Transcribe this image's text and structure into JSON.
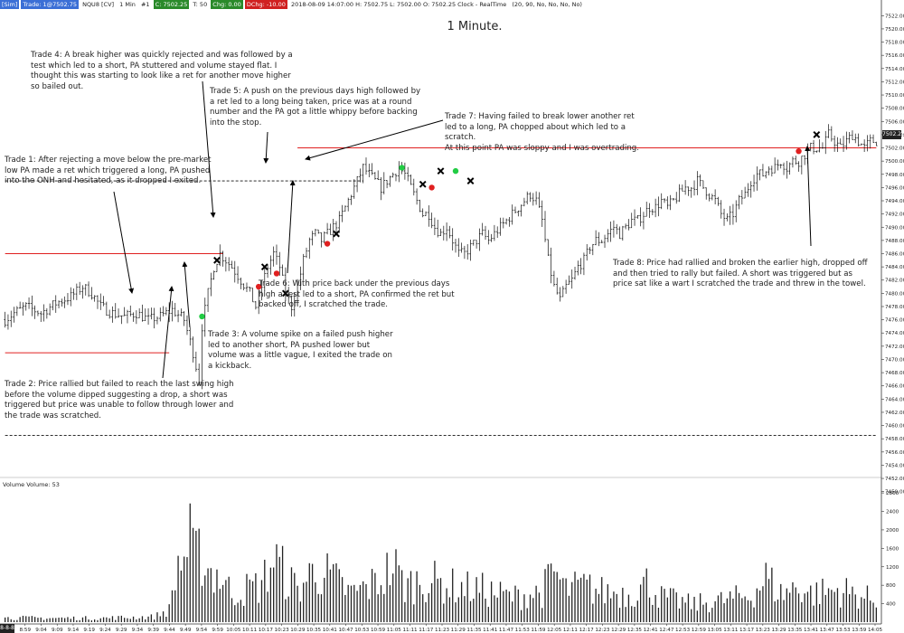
{
  "header": {
    "tag": "[Sim]",
    "trade_label": "Trade: 1@7502.75",
    "symbol": "NQU8 [CV]",
    "interval": "1 Min",
    "bar_no": "#1",
    "close": "C: 7502.25",
    "tick": "T: 50",
    "chg": "Chg: 0.00",
    "dchg": "DChg: -10.00",
    "ohlc": "2018-08-09 14:07:00 H: 7502.75 L: 7502.00 O: 7502.25 Clock - RealTime",
    "params": "(20, 90, No, No, No, No)"
  },
  "title": "1 Minute.",
  "price_box": "7502.25",
  "axis_corner": "8-8-8",
  "volume_label": "Volume  Volume: 53",
  "colors": {
    "red": "#e02020",
    "green": "#22cc44",
    "candle": "#111111",
    "grid": "#cccccc"
  },
  "notes": [
    {
      "id": "trade-4",
      "text": "Trade 4:  A break higher was quickly rejected and was followed by a test which led to a short, PA stuttered and volume stayed flat.  I thought this was starting to look like a ret for another move higher so bailed out."
    },
    {
      "id": "trade-5",
      "text": "Trade 5:  A push on the previous days high followed by a ret led to a long being taken, price was at a round number and the PA got a little whippy before backing into the stop."
    },
    {
      "id": "trade-7",
      "text": "Trade 7:  Having failed to break lower another ret led to a long, PA chopped about which led to a scratch."
    },
    {
      "id": "trade-7b",
      "text": "At this point PA was sloppy and I was overtrading."
    },
    {
      "id": "trade-1",
      "text": "Trade 1:  After rejecting a move below the pre-market low PA made a ret which triggered a long, PA pushed into the ONH and hesitated, as it dropped I exited."
    },
    {
      "id": "trade-6",
      "text": "Trade 6:  With price back under the previous days high a test led to a short, PA confirmed the ret but backed off, I scratched the trade."
    },
    {
      "id": "trade-8",
      "text": "Trade 8:  Price had rallied and broken the earlier high, dropped off and then tried to rally but failed.  A short was triggered but as price sat like a wart I scratched the trade and threw in the towel."
    },
    {
      "id": "trade-3",
      "text": "Trade 3:  A volume spike on a failed push higher led to another short, PA pushed lower but volume was a little vague, I exited the trade on a kickback."
    },
    {
      "id": "trade-2",
      "text": "Trade 2:  Price rallied but failed to reach the last swing high before the volume dipped suggesting a drop, a short was triggered but price was unable to follow through lower and the trade was scratched."
    }
  ],
  "chart_data": {
    "type": "candlestick",
    "price_axis": {
      "ylim": [
        7449,
        7523
      ],
      "tick_labels": [
        "7522.00",
        "7520.00",
        "7518.00",
        "7516.00",
        "7514.00",
        "7512.00",
        "7510.00",
        "7508.00",
        "7506.00",
        "7504.00",
        "7502.00",
        "7500.00",
        "7498.00",
        "7496.00",
        "7494.00",
        "7492.00",
        "7490.00",
        "7488.00",
        "7486.00",
        "7484.00",
        "7482.00",
        "7480.00",
        "7478.00",
        "7476.00",
        "7474.00",
        "7472.00",
        "7470.00",
        "7468.00",
        "7466.00",
        "7464.00",
        "7462.00",
        "7460.00",
        "7458.00",
        "7456.00",
        "7454.00",
        "7452.00",
        "7450.00"
      ]
    },
    "volume_axis": {
      "ylim": [
        0,
        2900
      ],
      "tick_labels": [
        "2800",
        "2400",
        "2000",
        "1600",
        "1200",
        "800",
        "400"
      ]
    },
    "time_labels": [
      "8:53",
      "8:59",
      "9:04",
      "9:09",
      "9:14",
      "9:19",
      "9:24",
      "9:29",
      "9:34",
      "9:39",
      "9:44",
      "9:49",
      "9:54",
      "9:59",
      "10:05",
      "10:11",
      "10:17",
      "10:23",
      "10:29",
      "10:35",
      "10:41",
      "10:47",
      "10:53",
      "10:59",
      "11:05",
      "11:11",
      "11:17",
      "11:23",
      "11:29",
      "11:35",
      "11:41",
      "11:47",
      "11:53",
      "11:59",
      "12:05",
      "12:11",
      "12:17",
      "12:23",
      "12:29",
      "12:35",
      "12:41",
      "12:47",
      "12:53",
      "12:59",
      "13:05",
      "13:11",
      "13:17",
      "13:23",
      "13:29",
      "13:35",
      "13:41",
      "13:47",
      "13:53",
      "13:59",
      "14:05"
    ],
    "price_path": [
      [
        0,
        7476
      ],
      [
        3,
        7477
      ],
      [
        7,
        7478
      ],
      [
        12,
        7477
      ],
      [
        17,
        7478.5
      ],
      [
        22,
        7479.5
      ],
      [
        26,
        7481
      ],
      [
        29,
        7480
      ],
      [
        32,
        7478
      ],
      [
        36,
        7477
      ],
      [
        40,
        7476.5
      ],
      [
        44,
        7477
      ],
      [
        48,
        7476
      ],
      [
        52,
        7476.5
      ],
      [
        56,
        7477.5
      ],
      [
        60,
        7476
      ],
      [
        63,
        7471
      ],
      [
        65,
        7467
      ],
      [
        66,
        7475
      ],
      [
        68,
        7480
      ],
      [
        70,
        7484
      ],
      [
        72,
        7486
      ],
      [
        74,
        7485
      ],
      [
        76,
        7484
      ],
      [
        79,
        7482
      ],
      [
        82,
        7480
      ],
      [
        84,
        7478
      ],
      [
        86,
        7481
      ],
      [
        88,
        7484
      ],
      [
        90,
        7486
      ],
      [
        92,
        7484
      ],
      [
        94,
        7480
      ],
      [
        96,
        7478
      ],
      [
        98,
        7481
      ],
      [
        100,
        7485
      ],
      [
        102,
        7488
      ],
      [
        104,
        7489
      ],
      [
        106,
        7488
      ],
      [
        108,
        7489
      ],
      [
        110,
        7490
      ],
      [
        112,
        7491
      ],
      [
        114,
        7493
      ],
      [
        116,
        7495
      ],
      [
        118,
        7497
      ],
      [
        120,
        7499
      ],
      [
        122,
        7498
      ],
      [
        124,
        7497
      ],
      [
        126,
        7496
      ],
      [
        128,
        7497
      ],
      [
        130,
        7498
      ],
      [
        132,
        7499
      ],
      [
        134,
        7498
      ],
      [
        136,
        7496
      ],
      [
        138,
        7494
      ],
      [
        140,
        7492
      ],
      [
        142,
        7492
      ],
      [
        144,
        7490
      ],
      [
        146,
        7489
      ],
      [
        148,
        7490
      ],
      [
        150,
        7488
      ],
      [
        152,
        7486
      ],
      [
        154,
        7486
      ],
      [
        156,
        7487
      ],
      [
        158,
        7488
      ],
      [
        160,
        7489
      ],
      [
        162,
        7488
      ],
      [
        164,
        7489
      ],
      [
        166,
        7490
      ],
      [
        168,
        7491
      ],
      [
        170,
        7492
      ],
      [
        172,
        7493
      ],
      [
        174,
        7494
      ],
      [
        176,
        7495
      ],
      [
        178,
        7494
      ],
      [
        180,
        7491
      ],
      [
        182,
        7485
      ],
      [
        184,
        7481
      ],
      [
        186,
        7479
      ],
      [
        188,
        7481
      ],
      [
        190,
        7482
      ],
      [
        192,
        7484
      ],
      [
        194,
        7485
      ],
      [
        196,
        7487
      ],
      [
        198,
        7488
      ],
      [
        200,
        7488
      ],
      [
        202,
        7489
      ],
      [
        204,
        7490
      ],
      [
        206,
        7489
      ],
      [
        208,
        7490
      ],
      [
        210,
        7491
      ],
      [
        212,
        7491
      ],
      [
        214,
        7492
      ],
      [
        216,
        7493
      ],
      [
        218,
        7493
      ],
      [
        220,
        7494
      ],
      [
        222,
        7493
      ],
      [
        224,
        7494
      ],
      [
        226,
        7495
      ],
      [
        228,
        7496
      ],
      [
        230,
        7496
      ],
      [
        232,
        7497
      ],
      [
        234,
        7496
      ],
      [
        236,
        7495
      ],
      [
        238,
        7494
      ],
      [
        240,
        7492
      ],
      [
        242,
        7491
      ],
      [
        244,
        7492
      ],
      [
        246,
        7494
      ],
      [
        248,
        7495
      ],
      [
        250,
        7497
      ],
      [
        252,
        7498
      ],
      [
        254,
        7498
      ],
      [
        256,
        7499
      ],
      [
        258,
        7499
      ],
      [
        260,
        7500
      ],
      [
        262,
        7499
      ],
      [
        264,
        7500
      ],
      [
        266,
        7500
      ],
      [
        268,
        7501
      ],
      [
        270,
        7502
      ],
      [
        272,
        7502
      ],
      [
        274,
        7502
      ],
      [
        276,
        7504
      ],
      [
        278,
        7503
      ],
      [
        280,
        7502
      ],
      [
        282,
        7503
      ],
      [
        284,
        7504
      ],
      [
        286,
        7503
      ],
      [
        288,
        7502
      ],
      [
        290,
        7503
      ],
      [
        292,
        7503
      ]
    ],
    "levels": [
      {
        "name": "ONH",
        "y": 7486,
        "x0": 0,
        "x1": 73,
        "style": "solid-red"
      },
      {
        "name": "PML",
        "y": 7471,
        "x0": 0,
        "x1": 55,
        "style": "solid-red"
      },
      {
        "name": "PDH",
        "y": 7502,
        "x0": 98,
        "x1": 292,
        "style": "solid-red"
      },
      {
        "name": "upper-dashed",
        "y": 7497,
        "x0": 0,
        "x1": 120,
        "style": "dashed"
      },
      {
        "name": "lower-dashed",
        "y": 7458.5,
        "x0": 0,
        "x1": 292,
        "style": "dashed"
      }
    ],
    "entries": [
      {
        "trade": 1,
        "side": "long",
        "x": 66,
        "y": 7476.5,
        "marker": "green-dot"
      },
      {
        "trade": 1,
        "side": "exit",
        "x": 71,
        "y": 7485,
        "marker": "x"
      },
      {
        "trade": 2,
        "side": "short",
        "x": 85,
        "y": 7481,
        "marker": "red-dot"
      },
      {
        "trade": 2,
        "side": "exit",
        "x": 87,
        "y": 7484,
        "marker": "x"
      },
      {
        "trade": 3,
        "side": "short",
        "x": 91,
        "y": 7483,
        "marker": "red-dot"
      },
      {
        "trade": 3,
        "side": "exit",
        "x": 94,
        "y": 7480,
        "marker": "x"
      },
      {
        "trade": 4,
        "side": "short",
        "x": 108,
        "y": 7487.5,
        "marker": "red-dot"
      },
      {
        "trade": 4,
        "side": "exit",
        "x": 111,
        "y": 7489,
        "marker": "x"
      },
      {
        "trade": 5,
        "side": "long",
        "x": 133,
        "y": 7499,
        "marker": "green-dot"
      },
      {
        "trade": 5,
        "side": "exit",
        "x": 140,
        "y": 7496.5,
        "marker": "x"
      },
      {
        "trade": 6,
        "side": "short",
        "x": 143,
        "y": 7496,
        "marker": "red-dot"
      },
      {
        "trade": 6,
        "side": "exit",
        "x": 146,
        "y": 7498.5,
        "marker": "x"
      },
      {
        "trade": 7,
        "side": "long",
        "x": 151,
        "y": 7498.5,
        "marker": "green-dot"
      },
      {
        "trade": 7,
        "side": "exit",
        "x": 156,
        "y": 7497,
        "marker": "x"
      },
      {
        "trade": 8,
        "side": "short",
        "x": 266,
        "y": 7501.5,
        "marker": "red-dot"
      },
      {
        "trade": 8,
        "side": "exit",
        "x": 272,
        "y": 7504,
        "marker": "x"
      }
    ],
    "volume_profile": [
      [
        0,
        120
      ],
      [
        30,
        110
      ],
      [
        50,
        150
      ],
      [
        55,
        350
      ],
      [
        58,
        1650
      ],
      [
        60,
        1800
      ],
      [
        62,
        2200
      ],
      [
        64,
        1700
      ],
      [
        66,
        2000
      ],
      [
        68,
        1500
      ],
      [
        72,
        1300
      ],
      [
        76,
        800
      ],
      [
        80,
        900
      ],
      [
        86,
        1050
      ],
      [
        90,
        1800
      ],
      [
        94,
        1300
      ],
      [
        98,
        900
      ],
      [
        104,
        1500
      ],
      [
        110,
        1200
      ],
      [
        116,
        800
      ],
      [
        122,
        1000
      ],
      [
        126,
        1200
      ],
      [
        130,
        1600
      ],
      [
        134,
        1000
      ],
      [
        140,
        1200
      ],
      [
        150,
        1000
      ],
      [
        160,
        900
      ],
      [
        170,
        700
      ],
      [
        180,
        850
      ],
      [
        184,
        1400
      ],
      [
        188,
        900
      ],
      [
        194,
        1000
      ],
      [
        200,
        850
      ],
      [
        210,
        800
      ],
      [
        215,
        1100
      ],
      [
        220,
        700
      ],
      [
        230,
        500
      ],
      [
        240,
        600
      ],
      [
        250,
        750
      ],
      [
        255,
        1250
      ],
      [
        260,
        800
      ],
      [
        266,
        1000
      ],
      [
        270,
        800
      ],
      [
        280,
        900
      ],
      [
        292,
        600
      ]
    ]
  }
}
